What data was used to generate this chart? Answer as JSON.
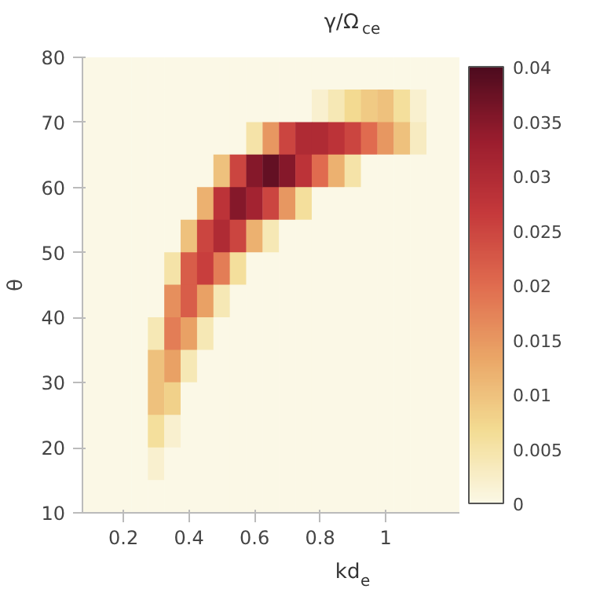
{
  "chart_data": {
    "type": "heatmap",
    "title": "γ/Ω$_{ce}$",
    "xlabel": "kd$_{e}$",
    "ylabel": "θ",
    "x": [
      0.1,
      0.15,
      0.2,
      0.25,
      0.3,
      0.35,
      0.4,
      0.45,
      0.5,
      0.55,
      0.6,
      0.65,
      0.7,
      0.75,
      0.8,
      0.85,
      0.9,
      0.95,
      1.0,
      1.05,
      1.1,
      1.15,
      1.2
    ],
    "y": [
      77.5,
      72.5,
      67.5,
      62.5,
      57.5,
      52.5,
      47.5,
      42.5,
      37.5,
      32.5,
      27.5,
      22.5,
      17.5,
      12.5
    ],
    "xlim": [
      0.075,
      1.225
    ],
    "xticks": [
      0.2,
      0.4,
      0.6,
      0.8,
      1
    ],
    "ylim": [
      10,
      80
    ],
    "yticks": [
      10,
      20,
      30,
      40,
      50,
      60,
      70,
      80
    ],
    "clim": [
      0,
      0.04
    ],
    "cticks": [
      0,
      0.005,
      0.01,
      0.015,
      0.02,
      0.025,
      0.03,
      0.035,
      0.04
    ],
    "cells": [
      [
        0,
        0,
        0,
        0,
        0,
        0,
        0,
        0,
        0,
        0,
        0,
        0,
        0,
        0,
        0,
        0,
        0,
        0,
        0,
        0,
        0,
        0,
        0
      ],
      [
        0,
        0,
        0,
        0,
        0,
        0,
        0,
        0,
        0,
        0,
        0,
        0,
        0,
        0,
        0.002,
        0.004,
        0.007,
        0.009,
        0.01,
        0.006,
        0.002,
        0,
        0
      ],
      [
        0,
        0,
        0,
        0,
        0,
        0,
        0,
        0,
        0,
        0,
        0.005,
        0.015,
        0.025,
        0.03,
        0.03,
        0.028,
        0.025,
        0.02,
        0.015,
        0.01,
        0.003,
        0,
        0
      ],
      [
        0,
        0,
        0,
        0,
        0,
        0,
        0,
        0,
        0.01,
        0.025,
        0.035,
        0.038,
        0.035,
        0.028,
        0.02,
        0.012,
        0.005,
        0,
        0,
        0,
        0,
        0,
        0
      ],
      [
        0,
        0,
        0,
        0,
        0,
        0,
        0,
        0.012,
        0.028,
        0.035,
        0.032,
        0.025,
        0.015,
        0.006,
        0,
        0,
        0,
        0,
        0,
        0,
        0,
        0,
        0
      ],
      [
        0,
        0,
        0,
        0,
        0,
        0,
        0.01,
        0.025,
        0.03,
        0.025,
        0.012,
        0.004,
        0,
        0,
        0,
        0,
        0,
        0,
        0,
        0,
        0,
        0,
        0
      ],
      [
        0,
        0,
        0,
        0,
        0,
        0.005,
        0.022,
        0.026,
        0.018,
        0.006,
        0,
        0,
        0,
        0,
        0,
        0,
        0,
        0,
        0,
        0,
        0,
        0,
        0
      ],
      [
        0,
        0,
        0,
        0,
        0,
        0.016,
        0.022,
        0.014,
        0.004,
        0,
        0,
        0,
        0,
        0,
        0,
        0,
        0,
        0,
        0,
        0,
        0,
        0,
        0
      ],
      [
        0,
        0,
        0,
        0,
        0.004,
        0.018,
        0.014,
        0.004,
        0,
        0,
        0,
        0,
        0,
        0,
        0,
        0,
        0,
        0,
        0,
        0,
        0,
        0,
        0
      ],
      [
        0,
        0,
        0,
        0,
        0.01,
        0.014,
        0.004,
        0,
        0,
        0,
        0,
        0,
        0,
        0,
        0,
        0,
        0,
        0,
        0,
        0,
        0,
        0,
        0
      ],
      [
        0,
        0,
        0,
        0,
        0.01,
        0.008,
        0,
        0,
        0,
        0,
        0,
        0,
        0,
        0,
        0,
        0,
        0,
        0,
        0,
        0,
        0,
        0,
        0
      ],
      [
        0,
        0,
        0,
        0,
        0.006,
        0.002,
        0,
        0,
        0,
        0,
        0,
        0,
        0,
        0,
        0,
        0,
        0,
        0,
        0,
        0,
        0,
        0,
        0
      ],
      [
        0,
        0,
        0,
        0,
        0.002,
        0,
        0,
        0,
        0,
        0,
        0,
        0,
        0,
        0,
        0,
        0,
        0,
        0,
        0,
        0,
        0,
        0,
        0
      ],
      [
        0,
        0,
        0,
        0,
        0,
        0,
        0,
        0,
        0,
        0,
        0,
        0,
        0,
        0,
        0,
        0,
        0,
        0,
        0,
        0,
        0,
        0,
        0
      ]
    ]
  }
}
